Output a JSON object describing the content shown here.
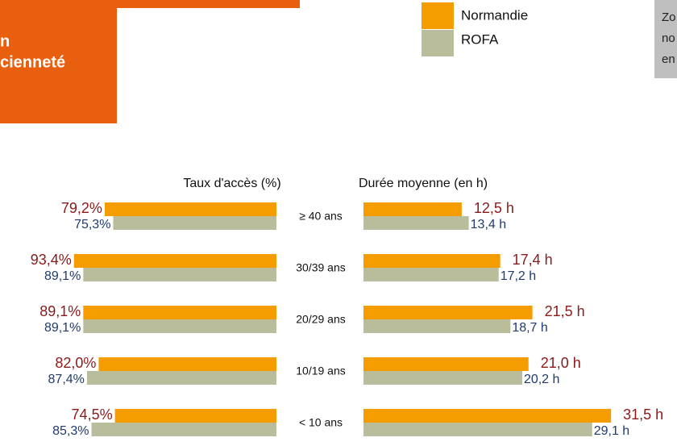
{
  "header": {
    "title_lines": [
      "n",
      "cienneté"
    ]
  },
  "note_lines": [
    "Zo",
    "no",
    "en"
  ],
  "chart_data": [
    {
      "type": "bar",
      "orientation": "horizontal",
      "direction": "left",
      "title": "Taux d'accès (%)",
      "categories": [
        "≥ 40 ans",
        "30/39 ans",
        "20/29 ans",
        "10/19 ans",
        "< 10 ans"
      ],
      "series": [
        {
          "name": "Normandie",
          "color": "#f59c00",
          "values": [
            79.2,
            93.4,
            89.1,
            82.0,
            74.5
          ],
          "value_labels": [
            "79,2%",
            "93,4%",
            "89,1%",
            "82,0%",
            "74,5%"
          ]
        },
        {
          "name": "ROFA",
          "color": "#b9bd9b",
          "values": [
            75.3,
            89.1,
            89.1,
            87.4,
            85.3
          ],
          "value_labels": [
            "75,3%",
            "89,1%",
            "89,1%",
            "87,4%",
            "85,3%"
          ]
        }
      ]
    },
    {
      "type": "bar",
      "orientation": "horizontal",
      "direction": "right",
      "title": "Durée moyenne (en h)",
      "series": [
        {
          "color": "#f59c00",
          "values": [
            12.5,
            17.4,
            21.5,
            21.0,
            31.5
          ],
          "value_labels": [
            "12,5 h",
            "17,4 h",
            "21,5 h",
            "21,0 h",
            "31,5 h"
          ]
        },
        {
          "color": "#b9bd9b",
          "values": [
            13.4,
            17.2,
            18.7,
            20.2,
            29.1
          ],
          "value_labels": [
            "13,4 h",
            "17,2 h",
            "18,7 h",
            "20,2 h",
            "29,1 h"
          ]
        }
      ]
    }
  ]
}
